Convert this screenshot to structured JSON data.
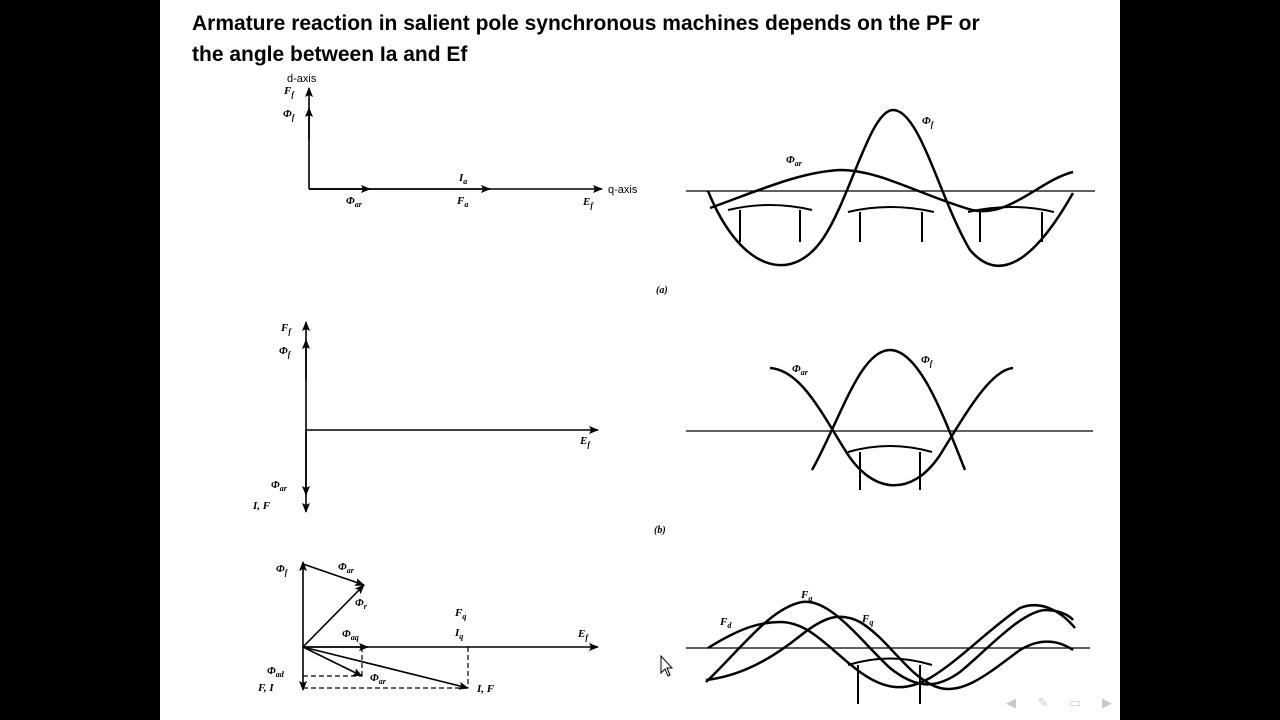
{
  "slide": {
    "title_line1": "Armature reaction in salient pole synchronous machines depends on the PF or",
    "title_line2": "the angle between Ia and Ef"
  },
  "figure": {
    "axes": {
      "d_axis": "d-axis",
      "q_axis": "q-axis"
    },
    "captions": {
      "a": "(a)",
      "b": "(b)"
    },
    "a": {
      "Ff": "F",
      "Phif": "Φ",
      "Phiar": "Φ",
      "Ia": "I",
      "Fa": "F",
      "Ef": "E"
    },
    "b": {
      "Ff": "F",
      "Phif": "Φ",
      "Ef": "E",
      "Phiar": "Φ",
      "IaFa": "I, F"
    },
    "c": {
      "Phif": "Φ",
      "Phiar": "Φ",
      "Phir": "Φ",
      "Phiaq": "Φ",
      "Fq": "F",
      "Iq": "I",
      "Ef": "E",
      "Phiad": "Φ",
      "FdId": "F, I",
      "Phiar2": "Φ",
      "IaFa": "I, F"
    },
    "right_a": {
      "Phif": "Φ",
      "Phiar": "Φ"
    },
    "right_b": {
      "Phiar": "Φ",
      "Phif": "Φ"
    },
    "right_c": {
      "Fd": "F",
      "Fa": "F",
      "Fq": "F"
    },
    "subscripts": {
      "f": "f",
      "ar": "ar",
      "a": "a",
      "aq": "aq",
      "ad": "ad",
      "q": "q",
      "d": "d",
      "r": "r"
    }
  },
  "toolbar": {
    "icons": [
      "previous-slide-icon",
      "pen-icon",
      "slide-menu-icon",
      "next-slide-icon"
    ]
  }
}
